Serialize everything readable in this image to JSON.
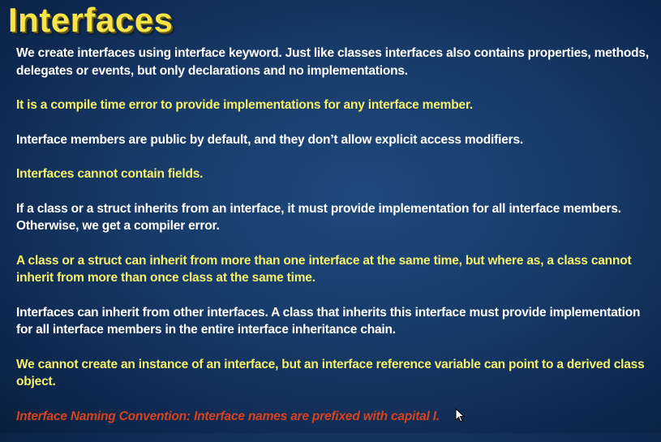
{
  "slide": {
    "title": "Interfaces",
    "paragraphs": [
      {
        "text": "We create interfaces using interface keyword. Just like classes interfaces also contains properties, methods, delegates or events, but only declarations and no implementations.",
        "color": "#ffffff"
      },
      {
        "text": "It is a compile time error to provide implementations for any interface member.",
        "color": "#f5f06a"
      },
      {
        "text": "Interface members are public by default, and they don’t allow explicit access modifiers.",
        "color": "#ffffff"
      },
      {
        "text": "Interfaces cannot contain fields.",
        "color": "#f5f06a"
      },
      {
        "text": "If a class or a struct inherits from an interface, it must provide implementation for all interface members. Otherwise, we get a compiler error.",
        "color": "#ffffff"
      },
      {
        "text": "A class or a struct can inherit from more than one interface at the same time, but where as, a class cannot inherit from more than once class at the same time.",
        "color": "#f5f06a"
      },
      {
        "text": "Interfaces can inherit from other interfaces. A class that inherits this interface must provide implementation for all interface members in the entire interface inheritance chain.",
        "color": "#ffffff"
      },
      {
        "text": "We cannot create an instance of an interface, but an interface reference variable can point to a derived class object.",
        "color": "#f5f06a"
      },
      {
        "text": "Interface Naming Convention: Interface names are prefixed with capital I.",
        "color": "#d9431c"
      }
    ]
  },
  "icons": {
    "cursor": "mouse-pointer-icon"
  }
}
